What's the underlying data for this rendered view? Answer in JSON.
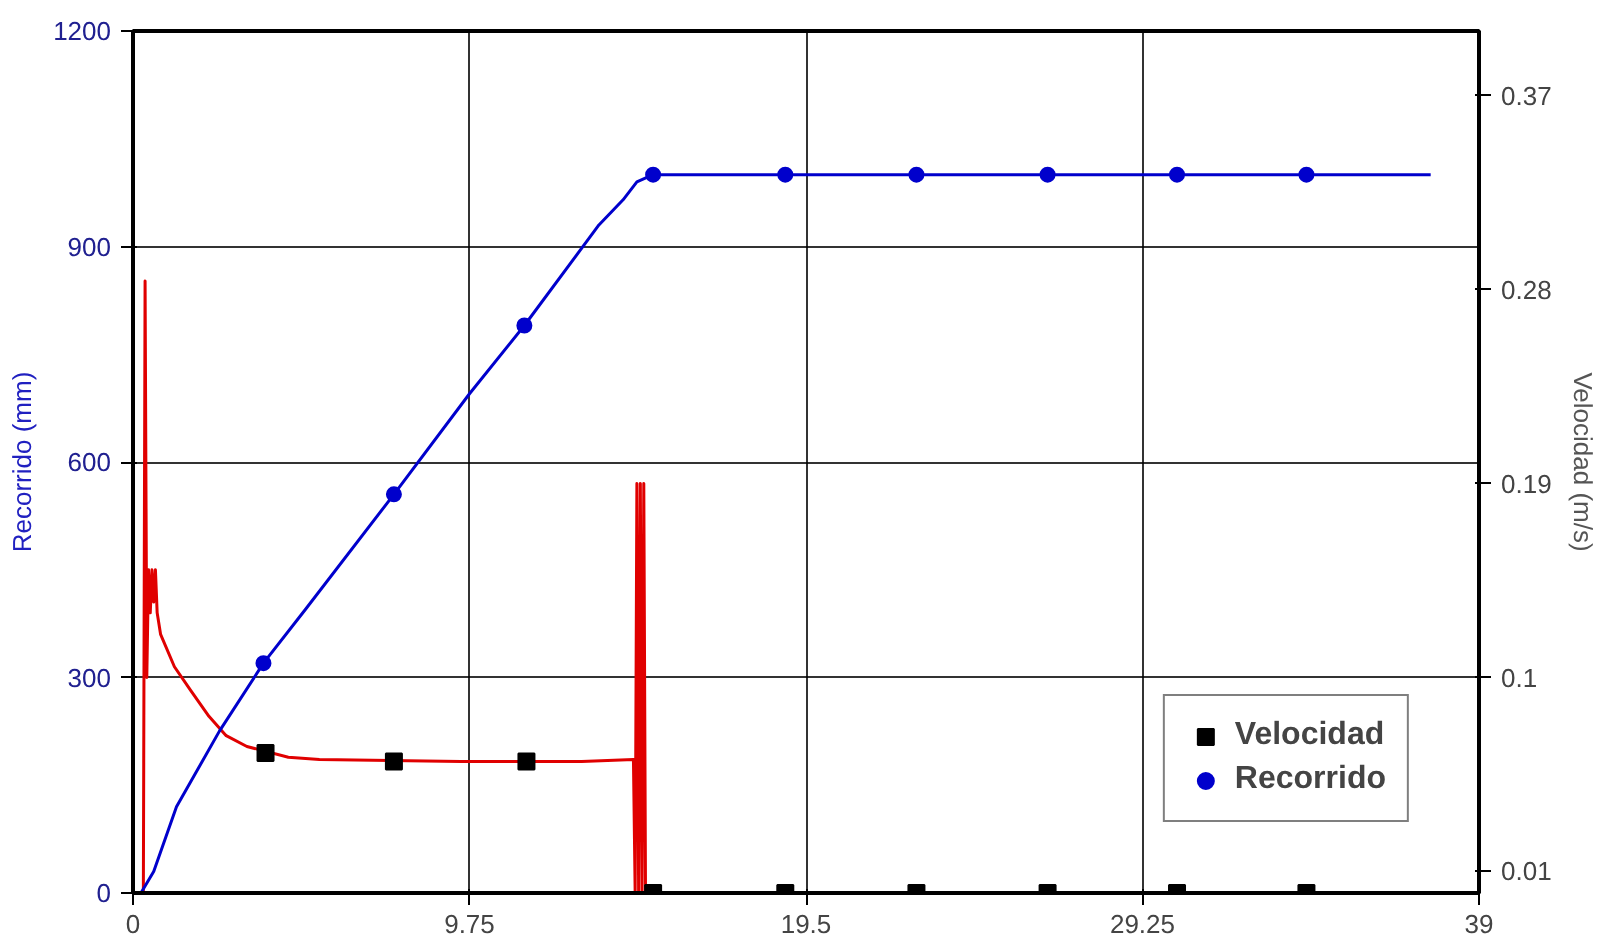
{
  "chart_data": {
    "type": "line",
    "ylabel": "Recorrido (mm)",
    "y2label": "Velocidad (m/s)",
    "xlim": [
      0,
      39
    ],
    "xticks": [
      0,
      9.75,
      19.5,
      29.25,
      39
    ],
    "ylim": [
      0,
      1200
    ],
    "yticks": [
      0,
      300,
      600,
      900,
      1200
    ],
    "y2lim": [
      0,
      0.4
    ],
    "y2ticks": [
      0.01,
      0.1,
      0.19,
      0.28,
      0.37
    ],
    "grid": true,
    "legend": "bottom right",
    "series": [
      {
        "color": "#e00000",
        "axis": "y2",
        "marker": "none",
        "x": [
          0,
          0.3,
          0.35,
          0.4,
          0.45,
          0.5,
          0.55,
          0.6,
          0.65,
          0.7,
          0.8,
          1.2,
          1.67,
          2.2,
          2.7,
          3.3,
          4.5,
          5.4,
          9.5,
          13,
          14.5,
          14.55,
          14.6,
          14.65,
          14.7,
          14.75,
          14.8,
          14.85,
          14.9,
          37.6
        ],
        "values": [
          0,
          0,
          0.284,
          0.1,
          0.15,
          0.13,
          0.15,
          0.135,
          0.15,
          0.13,
          0.12,
          0.105,
          0.094,
          0.082,
          0.073,
          0.068,
          0.063,
          0.062,
          0.061,
          0.061,
          0.062,
          0.0,
          0.19,
          0.0,
          0.19,
          0.0,
          0.19,
          0.0,
          0.0,
          0
        ]
      },
      {
        "type": "scatter",
        "name": "Velocidad",
        "color": "#000000",
        "axis": "y2",
        "marker": "square",
        "x": [
          3.84,
          7.56,
          11.4,
          15.07,
          18.9,
          22.7,
          26.5,
          30.25,
          34.0
        ],
        "values": [
          0.065,
          0.061,
          0.061,
          0,
          0,
          0,
          0,
          0,
          0
        ]
      },
      {
        "color": "#0000cc",
        "marker": "none",
        "x": [
          0.23,
          0.6,
          1.26,
          2.5,
          3.78,
          5.0,
          7.56,
          9.75,
          11.34,
          13.5,
          14.2,
          14.6,
          15.07,
          18.9,
          22.7,
          26.5,
          30.25,
          34.0,
          37.6
        ],
        "values": [
          0,
          30,
          120,
          225,
          320,
          395,
          555,
          695,
          790,
          930,
          965,
          990,
          1000,
          1000,
          1000,
          1000,
          1000,
          1000,
          1000
        ]
      },
      {
        "type": "scatter",
        "name": "Recorrido",
        "color": "#0000cc",
        "marker": "circle",
        "x": [
          3.78,
          7.56,
          11.34,
          15.07,
          18.9,
          22.7,
          26.5,
          30.25,
          34.0
        ],
        "values": [
          320,
          555,
          790,
          1000,
          1000,
          1000,
          1000,
          1000,
          1000
        ]
      }
    ]
  }
}
